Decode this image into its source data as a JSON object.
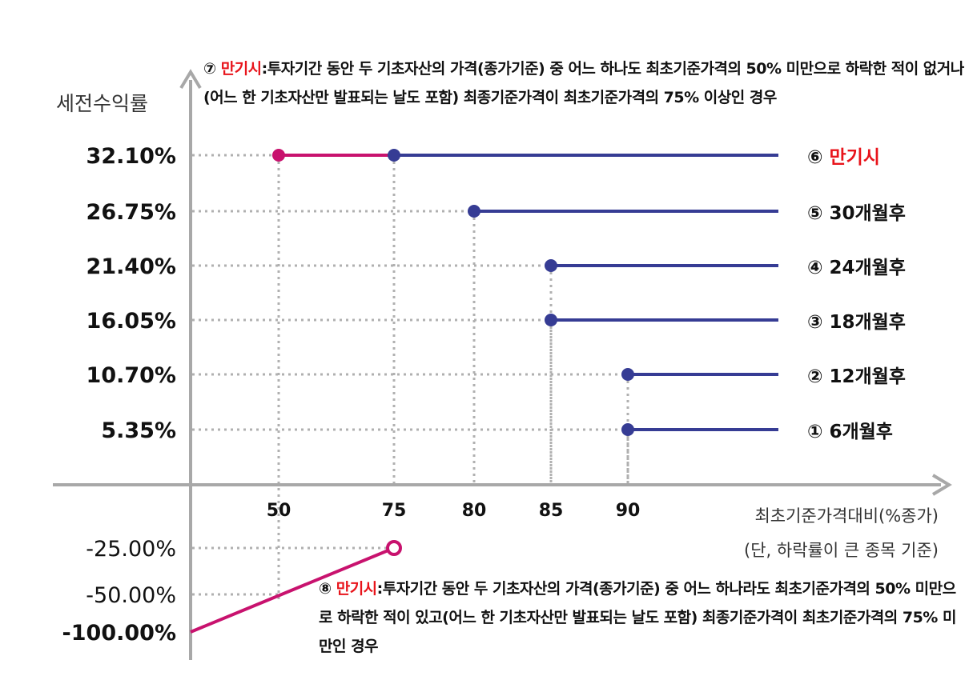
{
  "chart_data": {
    "type": "line",
    "title": "",
    "ylabel": "세전수익률",
    "xlabel": "최초기준가격대비(%종가)",
    "xlabel_note": "(단, 하락률이 큰 종목 기준)",
    "x_ticks": [
      "50",
      "75",
      "80",
      "85",
      "90"
    ],
    "y_ticks": [
      "32.10%",
      "26.75%",
      "21.40%",
      "16.05%",
      "10.70%",
      "5.35%",
      "-25.00%",
      "-50.00%",
      "-100.00%"
    ],
    "grid": false,
    "colors": {
      "gain_line": "#363c94",
      "maturity_line": "#c8126e",
      "dotted": "#b0b0b0",
      "axis": "#a8a8a8",
      "highlight_text": "#e8141b"
    },
    "series": [
      {
        "name": "① 6개월후",
        "num": "①",
        "label": "6개월후",
        "barrier": 90,
        "yield": 5.35
      },
      {
        "name": "② 12개월후",
        "num": "②",
        "label": "12개월후",
        "barrier": 90,
        "yield": 10.7
      },
      {
        "name": "③ 18개월후",
        "num": "③",
        "label": "18개월후",
        "barrier": 85,
        "yield": 16.05
      },
      {
        "name": "④ 24개월후",
        "num": "④",
        "label": "24개월후",
        "barrier": 85,
        "yield": 21.4
      },
      {
        "name": "⑤ 30개월후",
        "num": "⑤",
        "label": "30개월후",
        "barrier": 80,
        "yield": 26.75
      },
      {
        "name": "⑥ 만기시",
        "num": "⑥",
        "label": "만기시",
        "barrier": 75,
        "yield": 32.1,
        "knock_in_barrier": 50,
        "highlight": true
      }
    ],
    "loss_segment": {
      "points": [
        [
          0,
          -100
        ],
        [
          75,
          -25
        ]
      ],
      "endpoint": "open"
    },
    "annotations": {
      "note7": {
        "num": "⑦",
        "head": "만기시",
        "text": ":투자기간 동안 두 기초자산의 가격(종가기준) 중 어느 하나도 최초기준가격의 50% 미만으로 하락한 적이 없거나(어느 한 기초자산만 발표되는 날도 포함) 최종기준가격이 최초기준가격의 75% 이상인 경우"
      },
      "note8": {
        "num": "⑧",
        "head": "만기시",
        "text": ":투자기간 동안 두 기초자산의 가격(종가기준) 중 어느 하나라도 최초기준가격의 50% 미만으로 하락한 적이 있고(어느 한 기초자산만 발표되는 날도 포함) 최종기준가격이 최초기준가격의 75% 미만인 경우"
      }
    }
  }
}
